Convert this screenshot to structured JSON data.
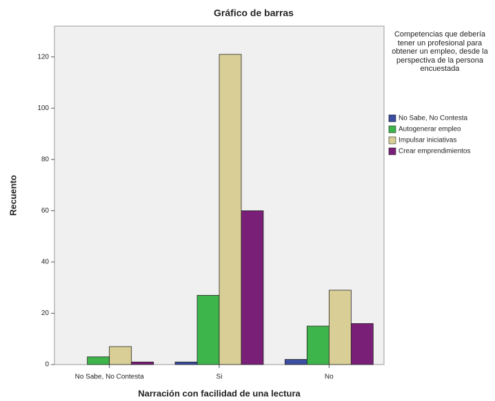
{
  "chart_data": {
    "type": "bar",
    "title": "Gráfico de barras",
    "x_label": "Narración con facilidad de una lectura",
    "y_label": "Recuento",
    "categories": [
      "No Sabe, No Contesta",
      "Si",
      "No"
    ],
    "legend_title": "Competencias que debería tener un profesional para obtener un empleo, desde la perspectiva de la persona encuestada",
    "series": [
      {
        "name": "No Sabe, No Contesta",
        "color": "#3b4ea0",
        "values": [
          0,
          1,
          2
        ]
      },
      {
        "name": "Autogenerar empleo",
        "color": "#3db54b",
        "values": [
          3,
          27,
          15
        ]
      },
      {
        "name": "Impulsar iniciativas",
        "color": "#d9cf96",
        "values": [
          7,
          121,
          29
        ]
      },
      {
        "name": "Crear emprendimientos",
        "color": "#7a1f78",
        "values": [
          1,
          60,
          16
        ]
      }
    ],
    "ylim": [
      0,
      132
    ],
    "yticks": [
      0,
      20,
      40,
      60,
      80,
      100,
      120
    ],
    "grid": false,
    "legend": "right"
  }
}
